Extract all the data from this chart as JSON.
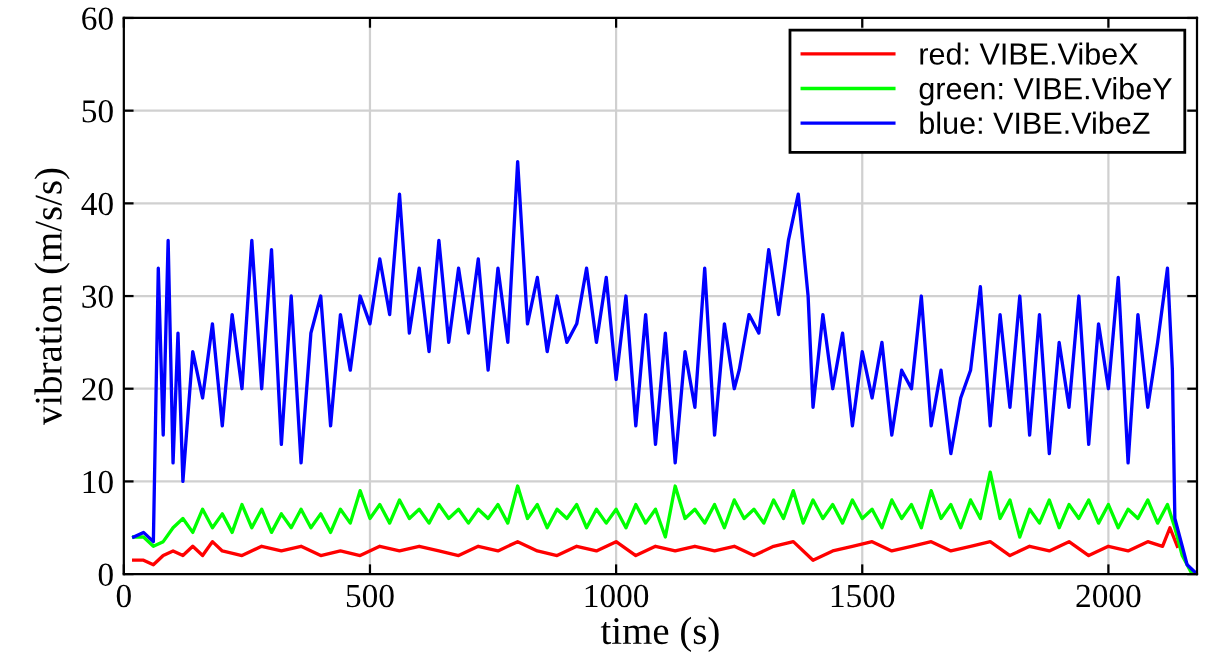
{
  "chart_data": {
    "type": "line",
    "xlabel": "time (s)",
    "ylabel": "vibration (m/s/s)",
    "xlim": [
      0,
      2180
    ],
    "ylim": [
      0,
      60
    ],
    "xticks": [
      0,
      500,
      1000,
      1500,
      2000
    ],
    "yticks": [
      0,
      10,
      20,
      30,
      40,
      50,
      60
    ],
    "grid": true,
    "legend": "top right",
    "line_style": "solid",
    "series": [
      {
        "name": "red: VIBE.VibeX",
        "color": "#ff0000",
        "x": [
          20,
          40,
          60,
          80,
          100,
          120,
          140,
          160,
          180,
          200,
          240,
          280,
          320,
          360,
          400,
          440,
          480,
          520,
          560,
          600,
          640,
          680,
          720,
          760,
          800,
          840,
          880,
          920,
          960,
          1000,
          1040,
          1080,
          1120,
          1160,
          1200,
          1240,
          1280,
          1320,
          1360,
          1400,
          1440,
          1480,
          1520,
          1560,
          1600,
          1640,
          1680,
          1720,
          1760,
          1800,
          1840,
          1880,
          1920,
          1960,
          2000,
          2040,
          2080,
          2110,
          2125,
          2140
        ],
        "values": [
          1.5,
          1.5,
          1,
          2,
          2.5,
          2,
          3,
          2,
          3.5,
          2.5,
          2,
          3,
          2.5,
          3,
          2,
          2.5,
          2,
          3,
          2.5,
          3,
          2.5,
          2,
          3,
          2.5,
          3.5,
          2.5,
          2,
          3,
          2.5,
          3.5,
          2,
          3,
          2.5,
          3,
          2.5,
          3,
          2,
          3,
          3.5,
          1.5,
          2.5,
          3,
          3.5,
          2.5,
          3,
          3.5,
          2.5,
          3,
          3.5,
          2,
          3,
          2.5,
          3.5,
          2,
          3,
          2.5,
          3.5,
          3,
          5,
          3
        ]
      },
      {
        "name": "green: VIBE.VibeY",
        "color": "#00ff00",
        "x": [
          20,
          40,
          60,
          80,
          100,
          120,
          140,
          160,
          180,
          200,
          220,
          240,
          260,
          280,
          300,
          320,
          340,
          360,
          380,
          400,
          420,
          440,
          460,
          480,
          500,
          520,
          540,
          560,
          580,
          600,
          620,
          640,
          660,
          680,
          700,
          720,
          740,
          760,
          780,
          800,
          820,
          840,
          860,
          880,
          900,
          920,
          940,
          960,
          980,
          1000,
          1020,
          1040,
          1060,
          1080,
          1100,
          1120,
          1140,
          1160,
          1180,
          1200,
          1220,
          1240,
          1260,
          1280,
          1300,
          1320,
          1340,
          1360,
          1380,
          1400,
          1420,
          1440,
          1460,
          1480,
          1500,
          1520,
          1540,
          1560,
          1580,
          1600,
          1620,
          1640,
          1660,
          1680,
          1700,
          1720,
          1740,
          1760,
          1780,
          1800,
          1820,
          1840,
          1860,
          1880,
          1900,
          1920,
          1940,
          1960,
          1980,
          2000,
          2020,
          2040,
          2060,
          2080,
          2100,
          2120,
          2135,
          2150,
          2170
        ],
        "values": [
          4,
          4,
          3,
          3.5,
          5,
          6,
          4.5,
          7,
          5,
          6.5,
          4.5,
          7.5,
          5,
          7,
          4.5,
          6.5,
          5,
          7,
          5,
          6.5,
          4.5,
          7,
          5.5,
          9,
          6,
          7.5,
          5.5,
          8,
          6,
          7,
          5.5,
          7.5,
          6,
          7,
          5.5,
          7,
          6,
          7.5,
          5.5,
          9.5,
          6,
          7.5,
          5,
          7,
          6,
          7.5,
          5,
          7,
          5.5,
          7,
          5,
          7.5,
          5.5,
          7,
          4,
          9.5,
          6,
          7,
          5.5,
          7.5,
          5,
          8,
          6,
          7,
          5.5,
          8,
          6,
          9,
          5.5,
          8,
          6,
          7.5,
          5.5,
          8,
          6,
          7,
          5,
          8,
          6,
          7.5,
          5,
          9,
          6,
          7.5,
          5,
          8,
          6,
          11,
          6,
          8,
          4,
          7,
          5.5,
          8,
          5,
          7.5,
          6,
          8,
          5.5,
          7.5,
          5,
          7,
          6,
          8,
          5.5,
          7.5,
          5,
          2,
          0
        ]
      },
      {
        "name": "blue: VIBE.VibeZ",
        "color": "#0000ff",
        "x": [
          20,
          40,
          60,
          70,
          80,
          90,
          100,
          110,
          120,
          140,
          160,
          180,
          200,
          220,
          240,
          260,
          280,
          300,
          320,
          340,
          360,
          380,
          400,
          420,
          440,
          460,
          480,
          500,
          520,
          540,
          560,
          580,
          600,
          620,
          640,
          660,
          680,
          700,
          720,
          740,
          760,
          780,
          800,
          820,
          840,
          860,
          880,
          900,
          920,
          940,
          960,
          980,
          1000,
          1020,
          1040,
          1060,
          1080,
          1100,
          1120,
          1140,
          1160,
          1180,
          1200,
          1220,
          1240,
          1250,
          1270,
          1290,
          1310,
          1330,
          1350,
          1370,
          1390,
          1400,
          1420,
          1440,
          1460,
          1480,
          1500,
          1520,
          1540,
          1560,
          1580,
          1600,
          1620,
          1640,
          1660,
          1680,
          1700,
          1720,
          1740,
          1760,
          1780,
          1800,
          1820,
          1840,
          1860,
          1880,
          1900,
          1920,
          1940,
          1960,
          1980,
          2000,
          2020,
          2040,
          2060,
          2080,
          2100,
          2120,
          2130,
          2135,
          2150,
          2160,
          2180
        ],
        "values": [
          4,
          4.5,
          3.5,
          33,
          15,
          36,
          12,
          26,
          10,
          24,
          19,
          27,
          16,
          28,
          20,
          36,
          20,
          35,
          14,
          30,
          12,
          26,
          30,
          16,
          28,
          22,
          30,
          27,
          34,
          28,
          41,
          26,
          33,
          24,
          36,
          25,
          33,
          26,
          34,
          22,
          33,
          25,
          44.5,
          27,
          32,
          24,
          30,
          25,
          27,
          33,
          25,
          32,
          21,
          30,
          16,
          28,
          14,
          26,
          12,
          24,
          18,
          33,
          15,
          27,
          20,
          22,
          28,
          26,
          35,
          28,
          36,
          41,
          30,
          18,
          28,
          20,
          26,
          16,
          24,
          19,
          25,
          15,
          22,
          20,
          30,
          16,
          22,
          13,
          19,
          22,
          31,
          16,
          28,
          18,
          30,
          15,
          28,
          13,
          25,
          18,
          30,
          14,
          27,
          20,
          32,
          12,
          28,
          18,
          25,
          33,
          22,
          6,
          3,
          1,
          0
        ]
      }
    ]
  }
}
